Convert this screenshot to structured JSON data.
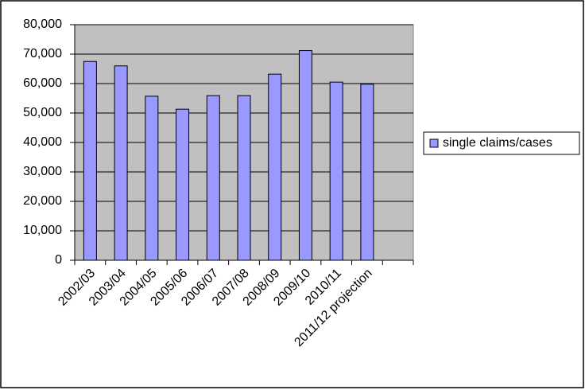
{
  "chart_data": {
    "type": "bar",
    "categories": [
      "2002/03",
      "2003/04",
      "2004/05",
      "2005/06",
      "2006/07",
      "2007/08",
      "2008/09",
      "2009/10",
      "2010/11",
      "2011/12 projection",
      null
    ],
    "series": [
      {
        "name": "single claims/cases",
        "color": "#9999ff",
        "values": [
          67500,
          66000,
          55700,
          51300,
          55900,
          55900,
          63200,
          71200,
          60500,
          59800,
          null
        ]
      }
    ],
    "ylim": [
      0,
      80000
    ],
    "yticks": [
      0,
      {
        "value": 10000,
        "label": "10,000"
      },
      {
        "value": 20000,
        "label": "20,000"
      },
      {
        "value": 30000,
        "label": "30,000"
      },
      {
        "value": 40000,
        "label": "40,000"
      },
      {
        "value": 50000,
        "label": "50,000"
      },
      {
        "value": 60000,
        "label": "60,000"
      },
      {
        "value": 70000,
        "label": "70,000"
      },
      {
        "value": 80000,
        "label": "80,000"
      }
    ],
    "grid": true,
    "legend": "right"
  }
}
